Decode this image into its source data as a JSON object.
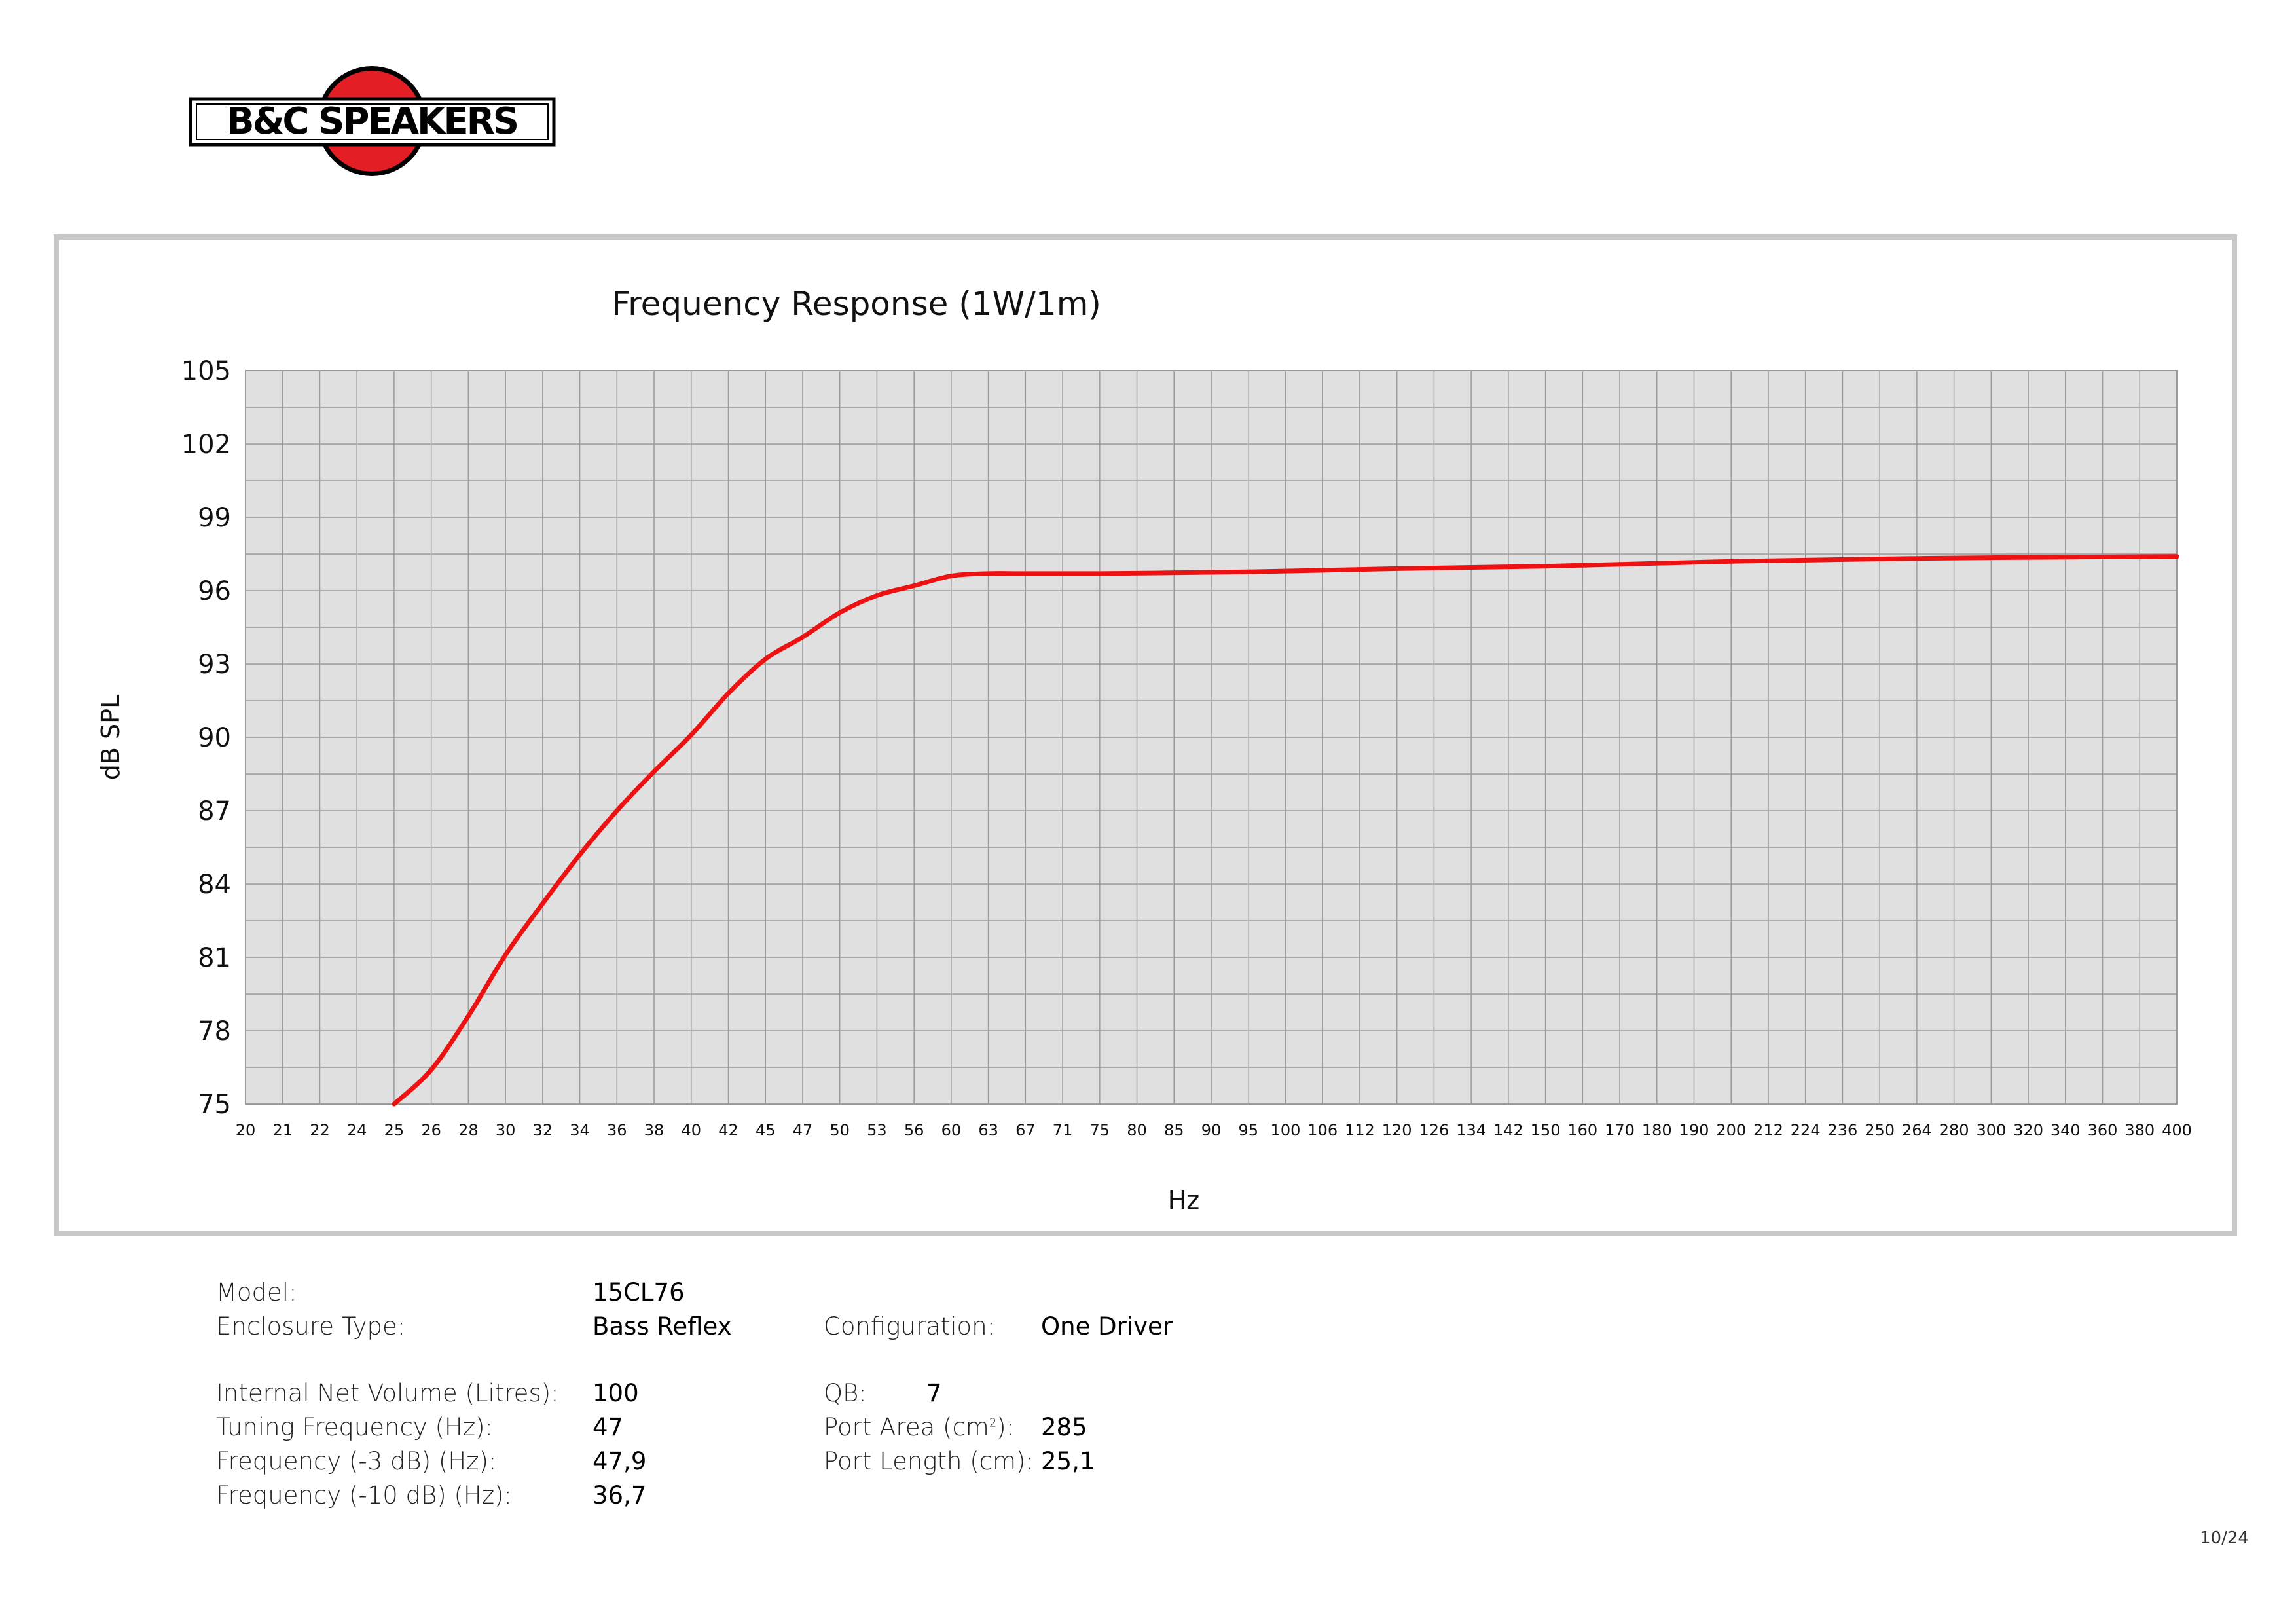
{
  "brand": {
    "logo_text": "B&C SPEAKERS",
    "colors": {
      "red": "#e31e24",
      "black": "#000000"
    }
  },
  "chart_data": {
    "type": "line",
    "title": "Frequency Response (1W/1m)",
    "xlabel": "Hz",
    "ylabel": "dB SPL",
    "ylim": [
      75,
      105
    ],
    "yticks": [
      105,
      102,
      99,
      96,
      93,
      90,
      87,
      84,
      81,
      78,
      75
    ],
    "xscale": "categorical-log",
    "xticks": [
      20,
      21,
      22,
      24,
      25,
      26,
      28,
      30,
      32,
      34,
      36,
      38,
      40,
      42,
      45,
      47,
      50,
      53,
      56,
      60,
      63,
      67,
      71,
      75,
      80,
      85,
      90,
      95,
      100,
      106,
      112,
      120,
      126,
      134,
      142,
      150,
      160,
      170,
      180,
      190,
      200,
      212,
      224,
      236,
      250,
      264,
      280,
      300,
      320,
      340,
      360,
      380,
      400
    ],
    "grid": true,
    "colors": {
      "plot_bg": "#e0e0e0",
      "grid": "#9a9a9a",
      "line": "#ee1111"
    },
    "series": [
      {
        "x": [
          25,
          26,
          28,
          30,
          32,
          34,
          36,
          38,
          40,
          42,
          45,
          47,
          50,
          53,
          56,
          60,
          63,
          67,
          75,
          90,
          100,
          120,
          150,
          200,
          250,
          300,
          400
        ],
        "y": [
          75.0,
          76.4,
          78.6,
          81.1,
          83.2,
          85.2,
          87.0,
          88.6,
          90.1,
          91.8,
          93.2,
          94.1,
          95.1,
          95.8,
          96.2,
          96.6,
          96.7,
          96.7,
          96.7,
          96.75,
          96.8,
          96.9,
          97.0,
          97.2,
          97.3,
          97.35,
          97.4
        ]
      }
    ]
  },
  "specs": {
    "model_label": "Model:",
    "model_value": "15CL76",
    "enclosure_label": "Enclosure Type:",
    "enclosure_value": "Bass Reflex",
    "configuration_label": "Configuration:",
    "configuration_value": "One Driver",
    "volume_label": "Internal Net Volume (Litres):",
    "volume_value": "100",
    "qb_label": "QB:",
    "qb_value": "7",
    "tuning_label": "Tuning Frequency (Hz):",
    "tuning_value": "47",
    "port_area_label": "Port Area (cm",
    "port_area_sup": "2",
    "port_area_suffix": "):",
    "port_area_value": "285",
    "f3_label": "Frequency (-3 dB) (Hz):",
    "f3_value": "47,9",
    "port_length_label": "Port Length (cm):",
    "port_length_value": "25,1",
    "f10_label": "Frequency (-10 dB) (Hz):",
    "f10_value": "36,7"
  },
  "page": {
    "number": "10/24"
  }
}
